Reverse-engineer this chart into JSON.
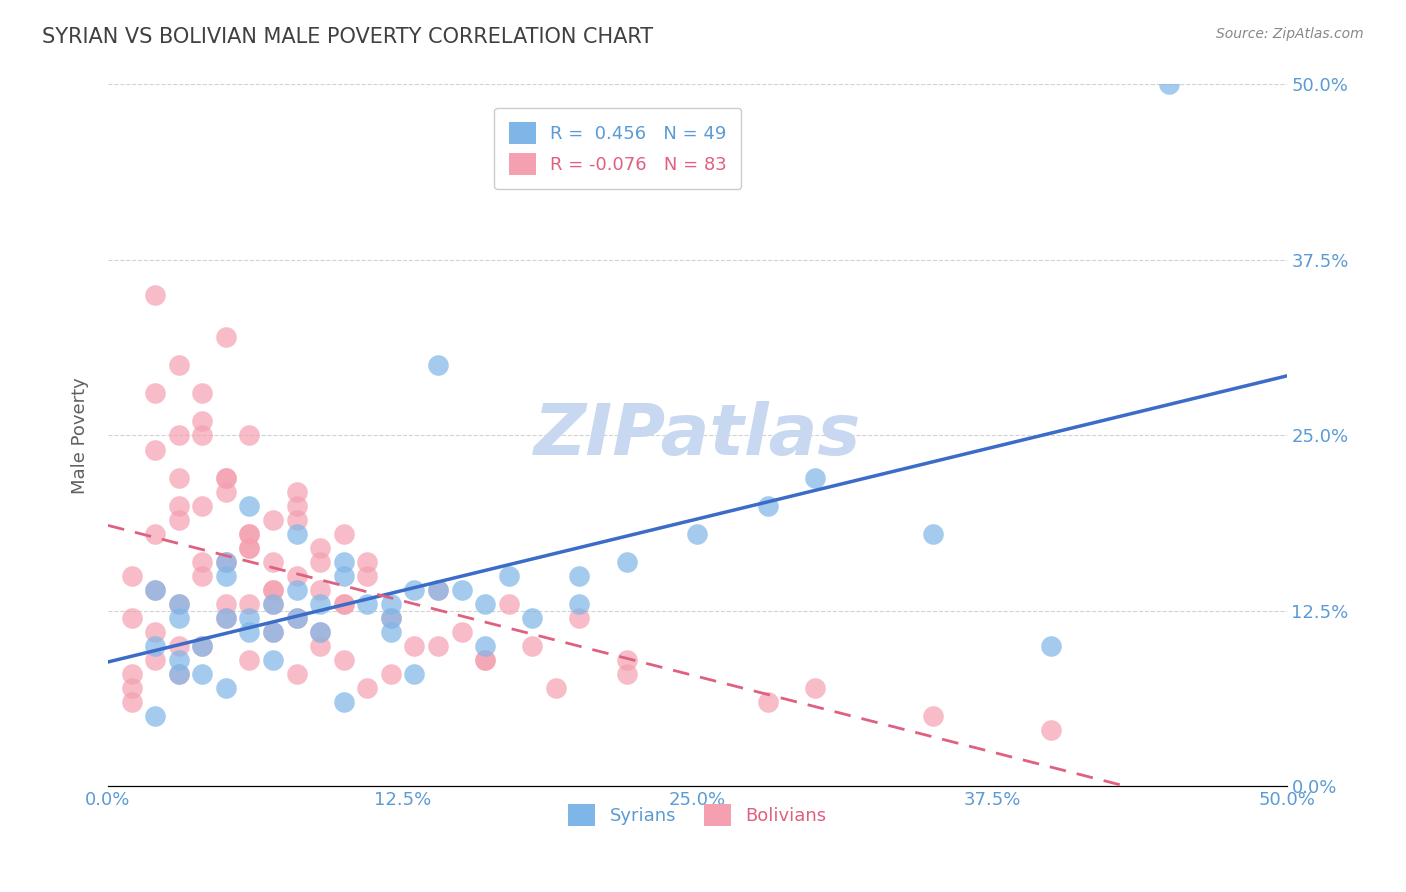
{
  "title": "SYRIAN VS BOLIVIAN MALE POVERTY CORRELATION CHART",
  "source": "Source: ZipAtlas.com",
  "xlabel_ticks": [
    "0.0%",
    "12.5%",
    "25.0%",
    "37.5%",
    "50.0%"
  ],
  "ylabel_ticks": [
    "0.0%",
    "12.5%",
    "25.0%",
    "37.5%",
    "50.0%"
  ],
  "xlim": [
    0.0,
    0.5
  ],
  "ylim": [
    0.0,
    0.5
  ],
  "syrian_color": "#7EB6E8",
  "bolivian_color": "#F4A0B0",
  "syrian_R": 0.456,
  "syrian_N": 49,
  "bolivian_R": -0.076,
  "bolivian_N": 83,
  "syrian_line_color": "#3B6CC7",
  "bolivian_line_color": "#E06080",
  "watermark": "ZIPatlas",
  "watermark_color": "#C8D8F0",
  "background_color": "#FFFFFF",
  "title_color": "#404040",
  "title_fontsize": 15,
  "axis_label_color": "#606060",
  "tick_color_x": "#5B9BD5",
  "tick_color_y_right": "#5B9BD5",
  "legend_label_syrian": "R =  0.456   N = 49",
  "legend_label_bolivian": "R = -0.076   N = 83",
  "syrian_scatter_x": [
    0.02,
    0.03,
    0.04,
    0.05,
    0.06,
    0.07,
    0.02,
    0.03,
    0.05,
    0.08,
    0.1,
    0.12,
    0.14,
    0.06,
    0.08,
    0.1,
    0.13,
    0.16,
    0.18,
    0.2,
    0.05,
    0.07,
    0.09,
    0.12,
    0.15,
    0.03,
    0.04,
    0.06,
    0.09,
    0.11,
    0.14,
    0.17,
    0.2,
    0.22,
    0.25,
    0.28,
    0.3,
    0.35,
    0.4,
    0.45,
    0.02,
    0.03,
    0.05,
    0.07,
    0.1,
    0.13,
    0.16,
    0.08,
    0.12
  ],
  "syrian_scatter_y": [
    0.1,
    0.12,
    0.08,
    0.15,
    0.11,
    0.13,
    0.14,
    0.09,
    0.16,
    0.14,
    0.15,
    0.13,
    0.3,
    0.2,
    0.18,
    0.16,
    0.14,
    0.13,
    0.12,
    0.15,
    0.12,
    0.11,
    0.13,
    0.12,
    0.14,
    0.13,
    0.1,
    0.12,
    0.11,
    0.13,
    0.14,
    0.15,
    0.13,
    0.16,
    0.18,
    0.2,
    0.22,
    0.18,
    0.1,
    0.5,
    0.05,
    0.08,
    0.07,
    0.09,
    0.06,
    0.08,
    0.1,
    0.12,
    0.11
  ],
  "bolivian_scatter_x": [
    0.01,
    0.02,
    0.03,
    0.01,
    0.02,
    0.03,
    0.04,
    0.01,
    0.02,
    0.03,
    0.04,
    0.05,
    0.02,
    0.03,
    0.04,
    0.05,
    0.06,
    0.03,
    0.04,
    0.05,
    0.06,
    0.07,
    0.04,
    0.05,
    0.06,
    0.07,
    0.08,
    0.05,
    0.06,
    0.07,
    0.08,
    0.09,
    0.06,
    0.07,
    0.08,
    0.09,
    0.1,
    0.07,
    0.08,
    0.09,
    0.1,
    0.11,
    0.08,
    0.09,
    0.1,
    0.11,
    0.12,
    0.13,
    0.14,
    0.15,
    0.16,
    0.17,
    0.18,
    0.2,
    0.22,
    0.02,
    0.03,
    0.04,
    0.05,
    0.06,
    0.01,
    0.02,
    0.01,
    0.03,
    0.02,
    0.04,
    0.03,
    0.05,
    0.06,
    0.07,
    0.08,
    0.09,
    0.1,
    0.11,
    0.12,
    0.14,
    0.16,
    0.19,
    0.22,
    0.28,
    0.3,
    0.35,
    0.4
  ],
  "bolivian_scatter_y": [
    0.15,
    0.28,
    0.22,
    0.12,
    0.18,
    0.1,
    0.25,
    0.08,
    0.14,
    0.2,
    0.16,
    0.13,
    0.24,
    0.19,
    0.15,
    0.21,
    0.17,
    0.25,
    0.2,
    0.22,
    0.18,
    0.14,
    0.26,
    0.16,
    0.13,
    0.19,
    0.15,
    0.22,
    0.17,
    0.13,
    0.2,
    0.16,
    0.18,
    0.14,
    0.21,
    0.17,
    0.13,
    0.16,
    0.12,
    0.14,
    0.18,
    0.15,
    0.19,
    0.11,
    0.13,
    0.16,
    0.12,
    0.1,
    0.14,
    0.11,
    0.09,
    0.13,
    0.1,
    0.12,
    0.09,
    0.35,
    0.3,
    0.28,
    0.32,
    0.25,
    0.07,
    0.09,
    0.06,
    0.08,
    0.11,
    0.1,
    0.13,
    0.12,
    0.09,
    0.11,
    0.08,
    0.1,
    0.09,
    0.07,
    0.08,
    0.1,
    0.09,
    0.07,
    0.08,
    0.06,
    0.07,
    0.05,
    0.04
  ]
}
